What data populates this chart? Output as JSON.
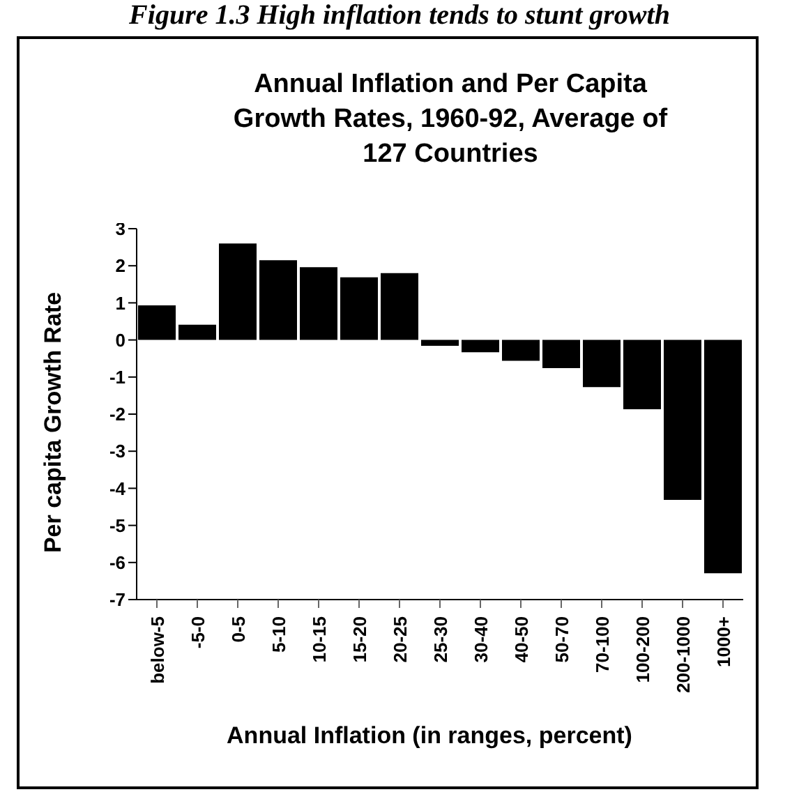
{
  "chart_data": {
    "type": "bar",
    "title": "Annual Inflation and Per Capita Growth Rates, 1960-92, Average of 127 Countries",
    "annotations": [
      "Figure 1.3 High inflation tends to stunt growth"
    ],
    "xlabel": "Annual Inflation (in ranges, percent)",
    "ylabel": "Per capita Growth Rate",
    "categories": [
      "below-5",
      "-5-0",
      "0-5",
      "5-10",
      "10-15",
      "15-20",
      "20-25",
      "25-30",
      "30-40",
      "40-50",
      "50-70",
      "70-100",
      "100-200",
      "200-1000",
      "1000+"
    ],
    "values": [
      0.93,
      0.41,
      2.6,
      2.15,
      1.96,
      1.69,
      1.8,
      -0.16,
      -0.33,
      -0.56,
      -0.76,
      -1.27,
      -1.87,
      -4.31,
      -6.29
    ],
    "color": "#000000",
    "ylim": [
      -7,
      3
    ],
    "yticks": [
      -7,
      -6,
      -5,
      -4,
      -3,
      -2,
      -1,
      0,
      1,
      2,
      3
    ],
    "grid": false,
    "legend": false
  }
}
